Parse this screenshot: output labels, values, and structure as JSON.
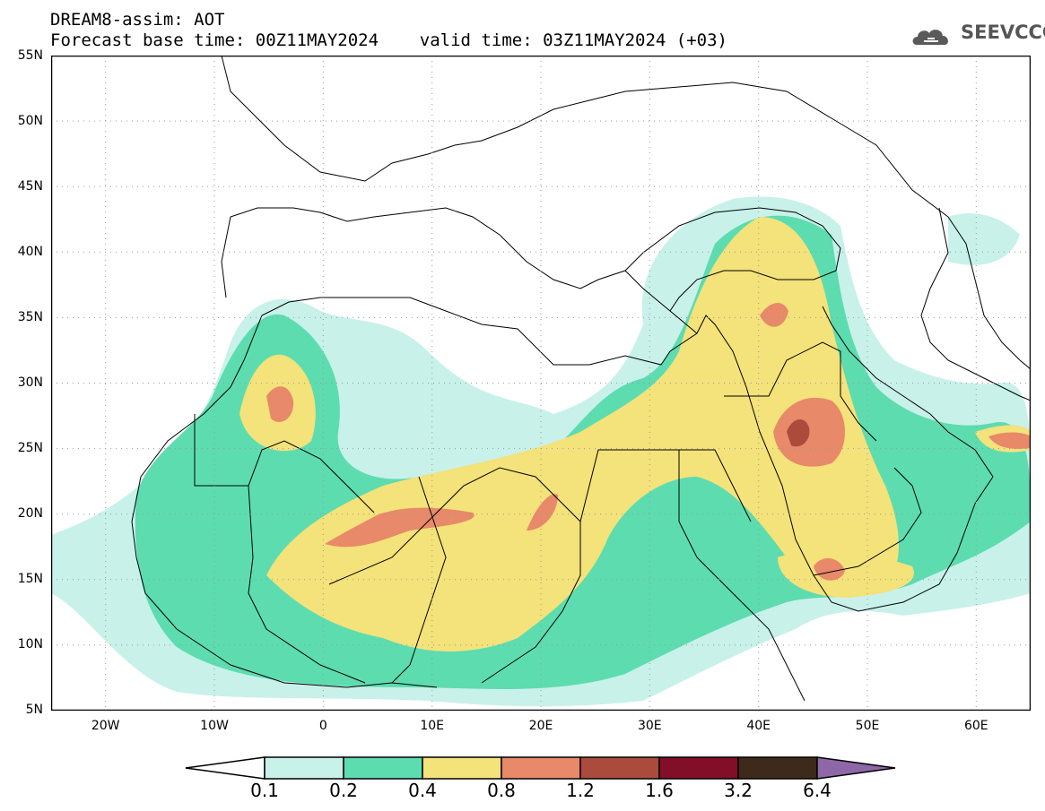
{
  "header": {
    "line1": "DREAM8-assim: AOT",
    "line2": "Forecast base time: 00Z11MAY2024    valid time: 03Z11MAY2024 (+03)"
  },
  "logo": {
    "text": "SEEVCCC",
    "icon": "cloud-icon"
  },
  "axes": {
    "lat_labels": [
      "55N",
      "50N",
      "45N",
      "40N",
      "35N",
      "30N",
      "25N",
      "20N",
      "15N",
      "10N",
      "5N"
    ],
    "lon_labels": [
      "20W",
      "10W",
      "0",
      "10E",
      "20E",
      "30E",
      "40E",
      "50E",
      "60E"
    ],
    "lon_range": [
      -25,
      65
    ],
    "lat_range": [
      5,
      55
    ]
  },
  "legend": {
    "labels": [
      "0.1",
      "0.2",
      "0.4",
      "0.8",
      "1.2",
      "1.6",
      "3.2",
      "6.4"
    ],
    "colors": [
      "#ffffff",
      "#c8f1ea",
      "#5ddcb0",
      "#f4e27a",
      "#e8896a",
      "#ab4b3c",
      "#820e28",
      "#3d2a1a",
      "#8e67a8"
    ]
  }
}
